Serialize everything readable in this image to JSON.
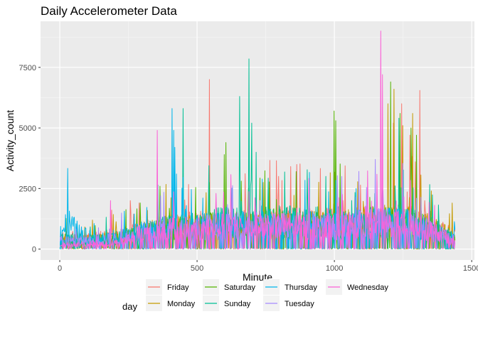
{
  "chart_data": {
    "type": "line",
    "title": "Daily Accelerometer Data",
    "xlabel": "Minute",
    "ylabel": "Activity_count",
    "xlim": [
      -70,
      1510
    ],
    "ylim": [
      -450,
      9400
    ],
    "x_ticks": [
      0,
      500,
      1000,
      1500
    ],
    "x_tick_labels": [
      "0",
      "500",
      "1000",
      "1500"
    ],
    "y_ticks": [
      0,
      2500,
      5000,
      7500
    ],
    "y_tick_labels": [
      "0",
      "2500",
      "5000",
      "7500"
    ],
    "grid": true,
    "legend_position": "bottom",
    "legend_title": "day",
    "series": [
      {
        "name": "Friday",
        "color": "#F8766D",
        "baseline": [
          [
            1,
            600
          ],
          [
            120,
            500
          ],
          [
            250,
            700
          ],
          [
            300,
            900
          ],
          [
            400,
            1100
          ],
          [
            600,
            1250
          ],
          [
            800,
            1300
          ],
          [
            1000,
            1250
          ],
          [
            1150,
            1400
          ],
          [
            1250,
            1500
          ],
          [
            1350,
            1100
          ],
          [
            1440,
            600
          ]
        ],
        "peaks": [
          [
            545,
            7000
          ],
          [
            1215,
            5200
          ],
          [
            1245,
            6000
          ],
          [
            1275,
            4700
          ],
          [
            1295,
            3600
          ],
          [
            1312,
            6550
          ],
          [
            1330,
            2000
          ]
        ]
      },
      {
        "name": "Monday",
        "color": "#C49A00",
        "baseline": [
          [
            1,
            500
          ],
          [
            120,
            450
          ],
          [
            250,
            650
          ],
          [
            300,
            850
          ],
          [
            400,
            1000
          ],
          [
            600,
            1150
          ],
          [
            800,
            1200
          ],
          [
            1000,
            1150
          ],
          [
            1150,
            1350
          ],
          [
            1250,
            1450
          ],
          [
            1350,
            1050
          ],
          [
            1440,
            550
          ]
        ],
        "peaks": [
          [
            120,
            1200
          ],
          [
            320,
            1600
          ],
          [
            1195,
            6000
          ],
          [
            1218,
            6600
          ],
          [
            1250,
            5100
          ],
          [
            1285,
            5600
          ],
          [
            1430,
            1900
          ]
        ]
      },
      {
        "name": "Saturday",
        "color": "#53B400",
        "baseline": [
          [
            1,
            450
          ],
          [
            120,
            400
          ],
          [
            250,
            600
          ],
          [
            300,
            800
          ],
          [
            400,
            1000
          ],
          [
            600,
            1200
          ],
          [
            800,
            1250
          ],
          [
            1000,
            1200
          ],
          [
            1150,
            1350
          ],
          [
            1250,
            1400
          ],
          [
            1350,
            1000
          ],
          [
            1440,
            500
          ]
        ],
        "peaks": [
          [
            600,
            3900
          ],
          [
            605,
            4400
          ],
          [
            1000,
            5700
          ],
          [
            1005,
            5300
          ],
          [
            1205,
            6900
          ],
          [
            1240,
            5600
          ],
          [
            1280,
            5000
          ],
          [
            1300,
            4700
          ]
        ]
      },
      {
        "name": "Sunday",
        "color": "#00C094",
        "baseline": [
          [
            1,
            500
          ],
          [
            120,
            450
          ],
          [
            250,
            600
          ],
          [
            300,
            850
          ],
          [
            400,
            1050
          ],
          [
            600,
            1300
          ],
          [
            800,
            1350
          ],
          [
            1000,
            1300
          ],
          [
            1150,
            1300
          ],
          [
            1250,
            1350
          ],
          [
            1350,
            1000
          ],
          [
            1440,
            500
          ]
        ],
        "peaks": [
          [
            450,
            5800
          ],
          [
            655,
            6300
          ],
          [
            690,
            7850
          ],
          [
            700,
            5200
          ],
          [
            715,
            4000
          ],
          [
            970,
            3000
          ],
          [
            1235,
            5400
          ]
        ]
      },
      {
        "name": "Thursday",
        "color": "#00B6EB",
        "baseline": [
          [
            1,
            800
          ],
          [
            30,
            1300
          ],
          [
            60,
            900
          ],
          [
            120,
            500
          ],
          [
            250,
            650
          ],
          [
            300,
            850
          ],
          [
            400,
            1050
          ],
          [
            600,
            1150
          ],
          [
            800,
            1200
          ],
          [
            1000,
            1150
          ],
          [
            1150,
            1250
          ],
          [
            1250,
            1300
          ],
          [
            1350,
            950
          ],
          [
            1440,
            500
          ]
        ],
        "peaks": [
          [
            410,
            5800
          ],
          [
            415,
            4900
          ],
          [
            420,
            4200
          ],
          [
            425,
            3100
          ],
          [
            1080,
            2500
          ],
          [
            1440,
            800
          ]
        ]
      },
      {
        "name": "Tuesday",
        "color": "#A58AFF",
        "baseline": [
          [
            1,
            400
          ],
          [
            120,
            400
          ],
          [
            250,
            600
          ],
          [
            300,
            800
          ],
          [
            400,
            1000
          ],
          [
            600,
            1100
          ],
          [
            800,
            1150
          ],
          [
            1000,
            1100
          ],
          [
            1150,
            1250
          ],
          [
            1250,
            1300
          ],
          [
            1350,
            950
          ],
          [
            1440,
            500
          ]
        ],
        "peaks": [
          [
            1150,
            3700
          ],
          [
            1300,
            2100
          ]
        ]
      },
      {
        "name": "Wednesday",
        "color": "#FB61D7",
        "baseline": [
          [
            1,
            200
          ],
          [
            120,
            250
          ],
          [
            200,
            300
          ],
          [
            250,
            500
          ],
          [
            300,
            800
          ],
          [
            400,
            950
          ],
          [
            600,
            1100
          ],
          [
            800,
            1150
          ],
          [
            1000,
            1050
          ],
          [
            1150,
            1200
          ],
          [
            1250,
            1250
          ],
          [
            1350,
            900
          ],
          [
            1440,
            400
          ]
        ],
        "peaks": [
          [
            185,
            2000
          ],
          [
            355,
            4900
          ],
          [
            1170,
            9000
          ],
          [
            1175,
            7200
          ]
        ]
      }
    ]
  }
}
